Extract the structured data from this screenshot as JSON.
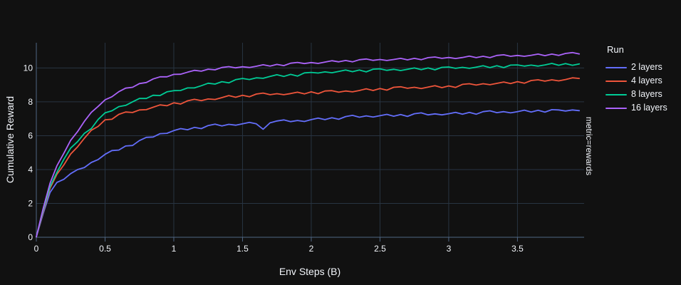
{
  "colors": {
    "background": "#111111",
    "text": "#f2f5fa",
    "grid": "#283442",
    "axis": "#506784"
  },
  "chart_data": {
    "type": "line",
    "title": "",
    "xlabel": "Env Steps (B)",
    "ylabel": "Cumulative Reward",
    "legend_title": "Run",
    "legend_position": "right",
    "annotation": "metric=rewards",
    "grid": true,
    "xlim": [
      0,
      3.985
    ],
    "ylim": [
      0,
      11.49
    ],
    "xticks": {
      "values": [
        0,
        0.5,
        1,
        1.5,
        2,
        2.5,
        3,
        3.5
      ],
      "labels": [
        "0",
        "0.5",
        "1",
        "1.5",
        "2",
        "2.5",
        "3",
        "3.5"
      ]
    },
    "yticks": {
      "values": [
        0,
        2,
        4,
        6,
        8,
        10
      ],
      "labels": [
        "0",
        "2",
        "4",
        "6",
        "8",
        "10"
      ]
    },
    "x": [
      0,
      0.05,
      0.1,
      0.15,
      0.2,
      0.25,
      0.3,
      0.35,
      0.4,
      0.45,
      0.5,
      0.55,
      0.6,
      0.65,
      0.7,
      0.75,
      0.8,
      0.85,
      0.9,
      0.95,
      1,
      1.05,
      1.1,
      1.15,
      1.2,
      1.25,
      1.3,
      1.35,
      1.4,
      1.45,
      1.5,
      1.55,
      1.6,
      1.65,
      1.7,
      1.75,
      1.8,
      1.85,
      1.9,
      1.95,
      2,
      2.05,
      2.1,
      2.15,
      2.2,
      2.25,
      2.3,
      2.35,
      2.4,
      2.45,
      2.5,
      2.55,
      2.6,
      2.65,
      2.7,
      2.75,
      2.8,
      2.85,
      2.9,
      2.95,
      3,
      3.05,
      3.1,
      3.15,
      3.2,
      3.25,
      3.3,
      3.35,
      3.4,
      3.45,
      3.5,
      3.55,
      3.6,
      3.65,
      3.7,
      3.75,
      3.8,
      3.85,
      3.9,
      3.95
    ],
    "series": [
      {
        "name": "2 layers",
        "color": "#636efa",
        "values": [
          0.02,
          1.4,
          2.65,
          3.24,
          3.42,
          3.76,
          4.0,
          4.12,
          4.42,
          4.59,
          4.9,
          5.12,
          5.15,
          5.39,
          5.42,
          5.71,
          5.9,
          5.92,
          6.12,
          6.14,
          6.3,
          6.42,
          6.35,
          6.49,
          6.42,
          6.6,
          6.68,
          6.58,
          6.67,
          6.62,
          6.7,
          6.79,
          6.7,
          6.38,
          6.76,
          6.87,
          6.93,
          6.83,
          6.9,
          6.84,
          6.95,
          7.04,
          6.95,
          7.06,
          6.97,
          7.13,
          7.2,
          7.09,
          7.17,
          7.1,
          7.18,
          7.26,
          7.15,
          7.25,
          7.14,
          7.3,
          7.35,
          7.23,
          7.29,
          7.23,
          7.3,
          7.38,
          7.27,
          7.38,
          7.27,
          7.42,
          7.47,
          7.36,
          7.42,
          7.35,
          7.42,
          7.51,
          7.4,
          7.5,
          7.39,
          7.54,
          7.52,
          7.46,
          7.52,
          7.48
        ]
      },
      {
        "name": "4 layers",
        "color": "#ef553b",
        "values": [
          0.02,
          1.5,
          2.9,
          3.72,
          4.27,
          4.92,
          5.34,
          5.85,
          6.32,
          6.55,
          6.94,
          6.97,
          7.26,
          7.4,
          7.37,
          7.52,
          7.54,
          7.68,
          7.82,
          7.77,
          7.94,
          7.87,
          8.06,
          8.15,
          8.07,
          8.17,
          8.14,
          8.25,
          8.37,
          8.27,
          8.39,
          8.3,
          8.46,
          8.52,
          8.42,
          8.48,
          8.42,
          8.49,
          8.57,
          8.47,
          8.59,
          8.48,
          8.64,
          8.66,
          8.57,
          8.64,
          8.59,
          8.67,
          8.77,
          8.67,
          8.79,
          8.69,
          8.86,
          8.89,
          8.8,
          8.86,
          8.79,
          8.87,
          8.95,
          8.84,
          8.94,
          8.85,
          9.03,
          9.07,
          8.99,
          9.07,
          9.01,
          9.09,
          9.17,
          9.08,
          9.19,
          9.1,
          9.26,
          9.3,
          9.22,
          9.3,
          9.24,
          9.32,
          9.42,
          9.38
        ]
      },
      {
        "name": "8 layers",
        "color": "#00cc96",
        "values": [
          0.02,
          1.6,
          3.0,
          3.84,
          4.6,
          5.27,
          5.65,
          6.14,
          6.42,
          6.96,
          7.35,
          7.47,
          7.72,
          7.79,
          8.0,
          8.2,
          8.2,
          8.39,
          8.37,
          8.59,
          8.66,
          8.67,
          8.82,
          8.82,
          8.95,
          9.1,
          9.05,
          9.19,
          9.12,
          9.31,
          9.38,
          9.32,
          9.42,
          9.39,
          9.5,
          9.6,
          9.5,
          9.62,
          9.52,
          9.71,
          9.74,
          9.7,
          9.77,
          9.72,
          9.8,
          9.88,
          9.78,
          9.88,
          9.77,
          9.93,
          9.95,
          9.86,
          9.92,
          9.85,
          9.92,
          10.0,
          9.9,
          10.0,
          9.89,
          10.04,
          10.06,
          9.98,
          10.04,
          9.98,
          10.05,
          10.13,
          10.02,
          10.13,
          10.02,
          10.17,
          10.18,
          10.11,
          10.17,
          10.11,
          10.18,
          10.27,
          10.16,
          10.26,
          10.16,
          10.24
        ]
      },
      {
        "name": "16 layers",
        "color": "#ab63fa",
        "values": [
          0.02,
          1.7,
          3.2,
          4.22,
          4.96,
          5.73,
          6.24,
          6.85,
          7.38,
          7.73,
          8.12,
          8.3,
          8.6,
          8.81,
          8.86,
          9.08,
          9.14,
          9.35,
          9.48,
          9.48,
          9.62,
          9.63,
          9.75,
          9.86,
          9.81,
          9.93,
          9.89,
          10.03,
          10.08,
          10.01,
          10.07,
          10.03,
          10.1,
          10.19,
          10.11,
          10.21,
          10.14,
          10.28,
          10.33,
          10.26,
          10.32,
          10.27,
          10.35,
          10.43,
          10.36,
          10.44,
          10.36,
          10.49,
          10.53,
          10.45,
          10.5,
          10.44,
          10.5,
          10.57,
          10.48,
          10.57,
          10.49,
          10.61,
          10.65,
          10.57,
          10.62,
          10.56,
          10.62,
          10.7,
          10.61,
          10.69,
          10.61,
          10.74,
          10.78,
          10.69,
          10.74,
          10.69,
          10.75,
          10.82,
          10.73,
          10.82,
          10.74,
          10.86,
          10.91,
          10.83
        ]
      }
    ]
  }
}
